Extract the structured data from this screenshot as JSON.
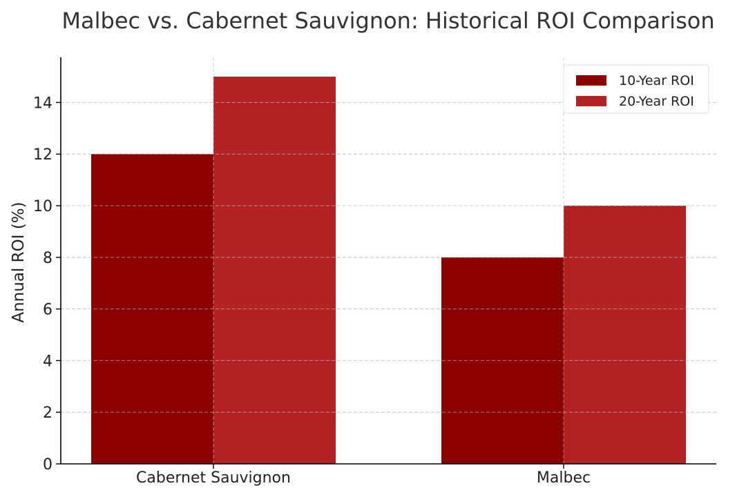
{
  "chart_data": {
    "type": "bar",
    "title": "Malbec vs. Cabernet Sauvignon: Historical ROI Comparison",
    "xlabel": "",
    "ylabel": "Annual ROI (%)",
    "categories": [
      "Cabernet Sauvignon",
      "Malbec"
    ],
    "series": [
      {
        "name": "10-Year ROI",
        "values": [
          12,
          8
        ],
        "color": "#8b0000"
      },
      {
        "name": "20-Year ROI",
        "values": [
          15,
          10
        ],
        "color": "#b22222"
      }
    ],
    "ylim": [
      0,
      15.75
    ],
    "yticks": [
      "0",
      "2",
      "4",
      "6",
      "8",
      "10",
      "12",
      "14"
    ],
    "grid": true,
    "legend_position": "top-right"
  }
}
